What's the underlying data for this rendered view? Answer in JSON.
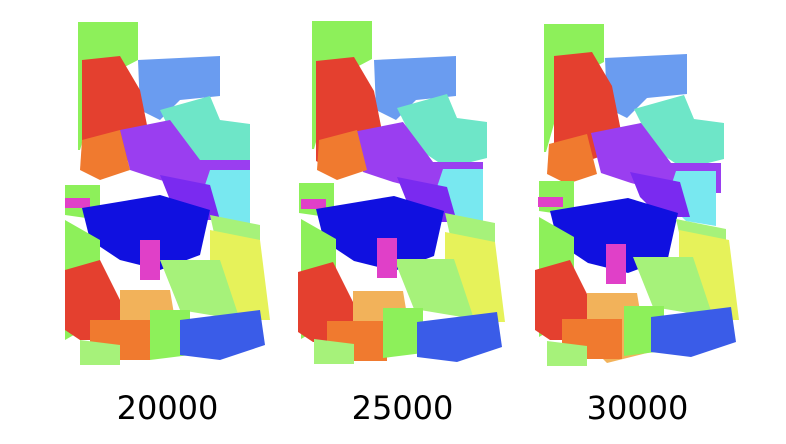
{
  "panels": [
    {
      "label": "20000"
    },
    {
      "label": "25000"
    },
    {
      "label": "30000"
    }
  ],
  "colors": {
    "green": "#8df05a",
    "red": "#e4402f",
    "orange": "#f07a2f",
    "blue_dark": "#1010e0",
    "blue_mid": "#3a5ce8",
    "sky": "#6a9cf0",
    "cyan": "#78e8f0",
    "aqua": "#6ee6c8",
    "purple": "#9a3ef0",
    "violet": "#7a2af0",
    "magenta": "#e040c8",
    "yellow": "#e6f25a",
    "light_green": "#a6f27a",
    "peach": "#f2b25a"
  }
}
